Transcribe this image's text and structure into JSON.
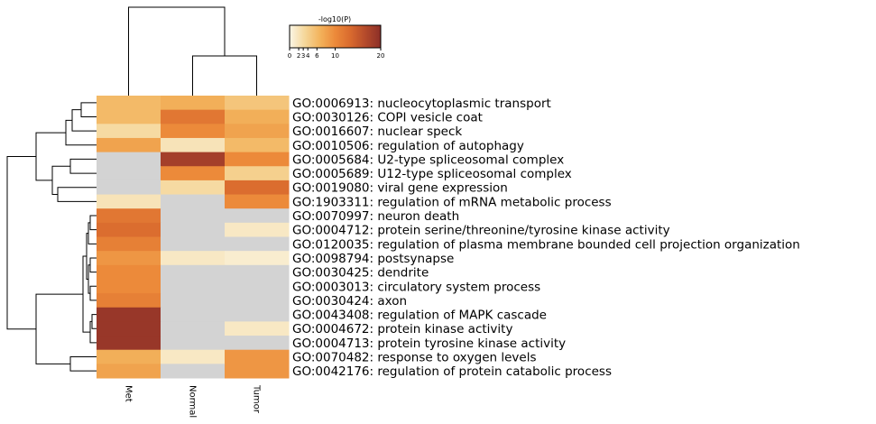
{
  "chart_data": {
    "type": "heatmap",
    "title": "",
    "columns": [
      "Met",
      "Normal",
      "Tumor"
    ],
    "rows": [
      "GO:0006913: nucleocytoplasmic transport",
      "GO:0030126: COPI vesicle coat",
      "GO:0016607: nuclear speck",
      "GO:0010506: regulation of autophagy",
      "GO:0005684: U2-type spliceosomal complex",
      "GO:0005689: U12-type spliceosomal complex",
      "GO:0019080: viral gene expression",
      "GO:1903311: regulation of mRNA metabolic process",
      "GO:0070997: neuron death",
      "GO:0004712: protein serine/threonine/tyrosine kinase activity",
      "GO:0120035: regulation of plasma membrane bounded cell projection organization",
      "GO:0098794: postsynapse",
      "GO:0030425: dendrite",
      "GO:0003013: circulatory system process",
      "GO:0030424: axon",
      "GO:0043408: regulation of MAPK cascade",
      "GO:0004672: protein kinase activity",
      "GO:0004713: protein tyrosine kinase activity",
      "GO:0070482: response to oxygen levels",
      "GO:0042176: regulation of protein catabolic process"
    ],
    "values": [
      [
        6,
        7,
        5
      ],
      [
        6,
        12,
        7
      ],
      [
        3,
        10,
        8
      ],
      [
        8,
        2,
        6
      ],
      [
        null,
        18,
        10
      ],
      [
        null,
        10,
        4
      ],
      [
        null,
        3,
        13
      ],
      [
        2,
        null,
        10
      ],
      [
        12,
        null,
        null
      ],
      [
        13,
        null,
        1.5
      ],
      [
        11,
        null,
        null
      ],
      [
        9,
        1.5,
        1
      ],
      [
        10,
        null,
        null
      ],
      [
        10,
        null,
        null
      ],
      [
        11,
        null,
        null
      ],
      [
        19,
        null,
        null
      ],
      [
        19,
        null,
        1.5
      ],
      [
        19,
        null,
        null
      ],
      [
        7,
        1.5,
        9
      ],
      [
        8,
        null,
        9
      ]
    ],
    "missing_color": "#d3d3d3",
    "colorbar": {
      "label": "-log10(P)",
      "ticks": [
        "0",
        "2",
        "3",
        "4",
        "6",
        "10",
        "20"
      ],
      "tick_values": [
        0,
        2,
        3,
        4,
        6,
        10,
        20
      ],
      "range": [
        0,
        20
      ],
      "colors": [
        "#fbf6e6",
        "#f5d79a",
        "#f3b35c",
        "#ec8a3a",
        "#d96a2e",
        "#b44a2b",
        "#8c2f28"
      ]
    },
    "row_dendrogram": true,
    "column_dendrogram": true
  }
}
